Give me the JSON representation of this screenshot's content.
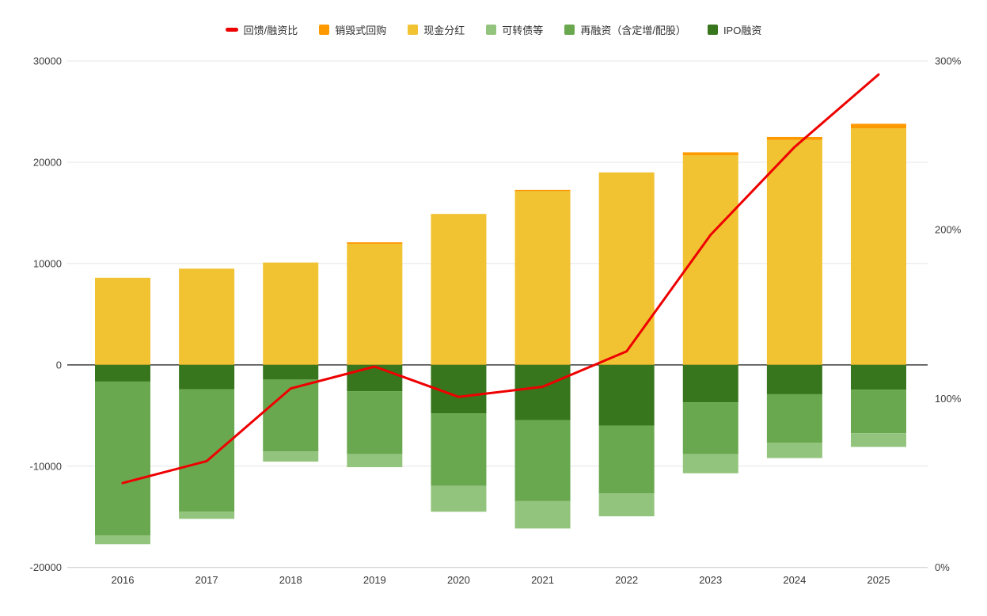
{
  "page": {
    "background": "#ffffff"
  },
  "legend": {
    "items": [
      {
        "id": "ratio",
        "label": "回馈/融资比",
        "color": "#ee0000",
        "marker": "line"
      },
      {
        "id": "buyback",
        "label": "销毁式回购",
        "color": "#ff9900",
        "marker": "square"
      },
      {
        "id": "dividend",
        "label": "现金分红",
        "color": "#f1c232",
        "marker": "square"
      },
      {
        "id": "convertible",
        "label": "可转债等",
        "color": "#93c47d",
        "marker": "square"
      },
      {
        "id": "refinancing",
        "label": "再融资（含定增/配股）",
        "color": "#6aa84f",
        "marker": "square"
      },
      {
        "id": "ipo",
        "label": "IPO融资",
        "color": "#38761d",
        "marker": "square"
      }
    ]
  },
  "chart_data": {
    "type": "stacked-bar+line",
    "title": "",
    "categories": [
      "2016",
      "2017",
      "2018",
      "2019",
      "2020",
      "2021",
      "2022",
      "2023",
      "2024",
      "2025"
    ],
    "bar_series": [
      {
        "name": "现金分红",
        "id": "dividend",
        "color": "#f1c232",
        "stack": "up",
        "values": [
          8600,
          9500,
          10100,
          11950,
          14900,
          17150,
          19000,
          20700,
          22200,
          23350
        ]
      },
      {
        "name": "销毁式回购",
        "id": "buyback",
        "color": "#ff9900",
        "stack": "up",
        "values": [
          0,
          0,
          0,
          150,
          0,
          120,
          0,
          280,
          300,
          450
        ]
      },
      {
        "name": "IPO融资",
        "id": "ipo",
        "color": "#38761d",
        "stack": "down",
        "values": [
          -1650,
          -2400,
          -1450,
          -2600,
          -4800,
          -5450,
          -6000,
          -3700,
          -2900,
          -2450
        ]
      },
      {
        "name": "再融资（含定增/配股）",
        "id": "refinancing",
        "color": "#6aa84f",
        "stack": "down",
        "values": [
          -15200,
          -12100,
          -7100,
          -6200,
          -7150,
          -8000,
          -6700,
          -5100,
          -4800,
          -4300
        ]
      },
      {
        "name": "可转债等",
        "id": "convertible",
        "color": "#93c47d",
        "stack": "down",
        "values": [
          -850,
          -700,
          -1000,
          -1300,
          -2550,
          -2700,
          -2250,
          -1900,
          -1500,
          -1350
        ]
      }
    ],
    "line_series": {
      "name": "回馈/融资比",
      "id": "ratio",
      "color": "#ee0000",
      "axis": "right",
      "values_percent": [
        50,
        63,
        106,
        119,
        101,
        107,
        128,
        197,
        249,
        292
      ]
    },
    "left_axis": {
      "min": -20000,
      "max": 30000,
      "ticks": [
        {
          "v": 30000,
          "label": "30000"
        },
        {
          "v": 20000,
          "label": "20000"
        },
        {
          "v": 10000,
          "label": "10000"
        },
        {
          "v": 0,
          "label": "0"
        },
        {
          "v": -10000,
          "label": "-10000"
        },
        {
          "v": -20000,
          "label": "-20000"
        }
      ]
    },
    "right_axis": {
      "min": 0,
      "max": 300,
      "ticks": [
        {
          "v": 300,
          "label": "300%"
        },
        {
          "v": 200,
          "label": "200%"
        },
        {
          "v": 100,
          "label": "100%"
        },
        {
          "v": 0,
          "label": "0%"
        }
      ]
    },
    "grid": true,
    "legend_position": "top",
    "colors": {
      "gridline": "#e4e4e4",
      "zero_line": "#3c3c3c",
      "bottom_axis": "#c9c9c9",
      "axis_text": "#3f3f3f"
    }
  }
}
